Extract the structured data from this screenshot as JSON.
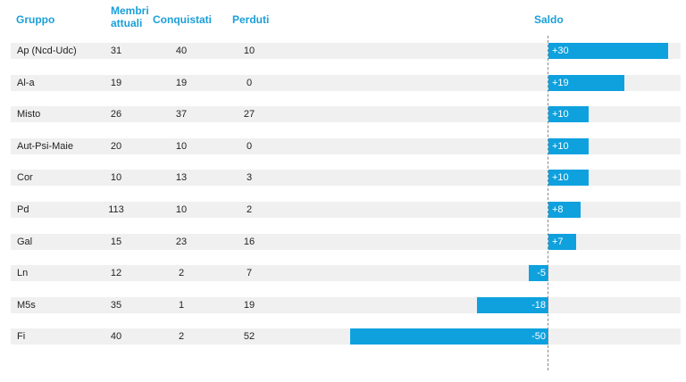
{
  "headers": {
    "gruppo": "Gruppo",
    "membri_line1": "Membri",
    "membri_line2": "attuali",
    "conquistati": "Conquistati",
    "perduti": "Perduti",
    "saldo": "Saldo"
  },
  "colors": {
    "accent": "#1a9fd9",
    "bar": "#0ea1de",
    "row_bg": "#f0f0f0"
  },
  "chart_data": {
    "type": "table",
    "columns": [
      "Gruppo",
      "Membri attuali",
      "Conquistati",
      "Perduti",
      "Saldo"
    ],
    "rows": [
      {
        "gruppo": "Ap (Ncd-Udc)",
        "membri": "31",
        "conquistati": "40",
        "perduti": "10",
        "saldo": 30,
        "saldo_label": "+30"
      },
      {
        "gruppo": "Al-a",
        "membri": "19",
        "conquistati": "19",
        "perduti": "0",
        "saldo": 19,
        "saldo_label": "+19"
      },
      {
        "gruppo": "Misto",
        "membri": "26",
        "conquistati": "37",
        "perduti": "27",
        "saldo": 10,
        "saldo_label": "+10"
      },
      {
        "gruppo": "Aut-Psi-Maie",
        "membri": "20",
        "conquistati": "10",
        "perduti": "0",
        "saldo": 10,
        "saldo_label": "+10"
      },
      {
        "gruppo": "Cor",
        "membri": "10",
        "conquistati": "13",
        "perduti": "3",
        "saldo": 10,
        "saldo_label": "+10"
      },
      {
        "gruppo": "Pd",
        "membri": "113",
        "conquistati": "10",
        "perduti": "2",
        "saldo": 8,
        "saldo_label": "+8"
      },
      {
        "gruppo": "Gal",
        "membri": "15",
        "conquistati": "23",
        "perduti": "16",
        "saldo": 7,
        "saldo_label": "+7"
      },
      {
        "gruppo": "Ln",
        "membri": "12",
        "conquistati": "2",
        "perduti": "7",
        "saldo": -5,
        "saldo_label": "-5"
      },
      {
        "gruppo": "M5s",
        "membri": "35",
        "conquistati": "1",
        "perduti": "19",
        "saldo": -18,
        "saldo_label": "-18"
      },
      {
        "gruppo": "Fi",
        "membri": "40",
        "conquistati": "2",
        "perduti": "52",
        "saldo": -50,
        "saldo_label": "-50"
      }
    ],
    "saldo_range": [
      -50,
      30
    ]
  }
}
